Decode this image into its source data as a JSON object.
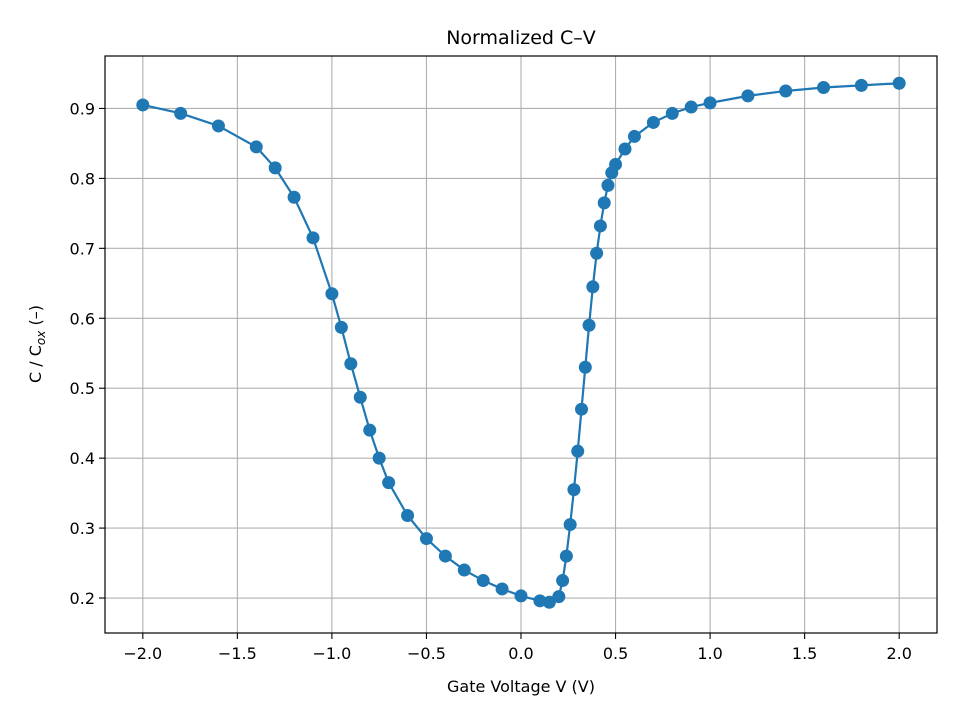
{
  "chart_data": {
    "type": "line",
    "title": "Normalized C–V",
    "xlabel": "Gate Voltage V (V)",
    "ylabel": {
      "base": "C / C",
      "sub": "ox",
      "tail": " (–)"
    },
    "xlim": [
      -2.2,
      2.2
    ],
    "ylim": [
      0.15,
      0.975
    ],
    "xticks": [
      -2.0,
      -1.5,
      -1.0,
      -0.5,
      0.0,
      0.5,
      1.0,
      1.5,
      2.0
    ],
    "xtick_labels": [
      "−2.0",
      "−1.5",
      "−1.0",
      "−0.5",
      "0.0",
      "0.5",
      "1.0",
      "1.5",
      "2.0"
    ],
    "yticks": [
      0.2,
      0.3,
      0.4,
      0.5,
      0.6,
      0.7,
      0.8,
      0.9
    ],
    "ytick_labels": [
      "0.2",
      "0.3",
      "0.4",
      "0.5",
      "0.6",
      "0.7",
      "0.8",
      "0.9"
    ],
    "grid": true,
    "marker": "circle",
    "series_color": "#1f77b4",
    "series": [
      {
        "x": [
          -2.0,
          -1.8,
          -1.6,
          -1.4,
          -1.3,
          -1.2,
          -1.1,
          -1.0,
          -0.95,
          -0.9,
          -0.85,
          -0.8,
          -0.75,
          -0.7,
          -0.6,
          -0.5,
          -0.4,
          -0.3,
          -0.2,
          -0.1,
          0.0,
          0.1,
          0.15,
          0.2,
          0.22,
          0.24,
          0.26,
          0.28,
          0.3,
          0.32,
          0.34,
          0.36,
          0.38,
          0.4,
          0.42,
          0.44,
          0.46,
          0.48,
          0.5,
          0.55,
          0.6,
          0.7,
          0.8,
          0.9,
          1.0,
          1.2,
          1.4,
          1.6,
          1.8,
          2.0
        ],
        "y": [
          0.905,
          0.893,
          0.875,
          0.845,
          0.815,
          0.773,
          0.715,
          0.635,
          0.587,
          0.535,
          0.487,
          0.44,
          0.4,
          0.365,
          0.318,
          0.285,
          0.26,
          0.24,
          0.225,
          0.213,
          0.203,
          0.196,
          0.194,
          0.202,
          0.225,
          0.26,
          0.305,
          0.355,
          0.41,
          0.47,
          0.53,
          0.59,
          0.645,
          0.693,
          0.732,
          0.765,
          0.79,
          0.808,
          0.82,
          0.842,
          0.86,
          0.88,
          0.893,
          0.902,
          0.908,
          0.918,
          0.925,
          0.93,
          0.933,
          0.936
        ]
      }
    ]
  }
}
